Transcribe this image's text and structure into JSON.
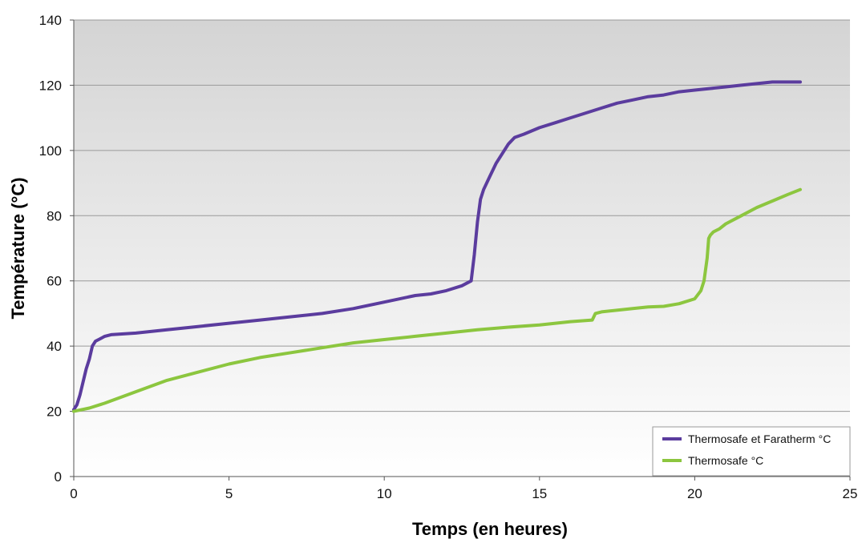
{
  "chart_data": {
    "type": "line",
    "title": "",
    "xlabel": "Temps (en heures)",
    "ylabel": "Température (°C)",
    "xlim": [
      0,
      25
    ],
    "ylim": [
      0,
      140
    ],
    "x_ticks": [
      0,
      5,
      10,
      15,
      20,
      25
    ],
    "y_ticks": [
      0,
      20,
      40,
      60,
      80,
      100,
      120,
      140
    ],
    "grid": "horizontal",
    "legend_position": "bottom-right",
    "background": "vertical gradient, grey at top to white at bottom",
    "series": [
      {
        "name": "Thermosafe et Faratherm °C",
        "color": "#5b3c9e",
        "x": [
          0,
          0.1,
          0.2,
          0.3,
          0.4,
          0.5,
          0.6,
          0.7,
          0.8,
          1.0,
          1.2,
          2,
          3,
          4,
          5,
          6,
          7,
          8,
          9,
          10,
          11,
          11.5,
          12,
          12.5,
          12.8,
          12.9,
          13.0,
          13.1,
          13.2,
          13.4,
          13.6,
          13.8,
          14.0,
          14.1,
          14.2,
          14.5,
          15,
          15.5,
          16,
          16.5,
          17,
          17.5,
          18,
          18.5,
          19,
          19.5,
          20,
          20.5,
          21,
          21.5,
          22,
          22.5,
          23,
          23.4
        ],
        "y": [
          20.5,
          22,
          25,
          29,
          33,
          36,
          40,
          41.5,
          42,
          43,
          43.5,
          44,
          45,
          46,
          47,
          48,
          49,
          50,
          51.5,
          53.5,
          55.5,
          56,
          57,
          58.5,
          60,
          68,
          78,
          85,
          88,
          92,
          96,
          99,
          102,
          103,
          104,
          105,
          107,
          108.5,
          110,
          111.5,
          113,
          114.5,
          115.5,
          116.5,
          117,
          118,
          118.5,
          119,
          119.5,
          120,
          120.5,
          121,
          121,
          121
        ]
      },
      {
        "name": "Thermosafe °C",
        "color": "#8cc63f",
        "x": [
          0,
          0.5,
          1,
          2,
          3,
          4,
          5,
          6,
          7,
          8,
          9,
          10,
          11,
          12,
          13,
          14,
          15,
          16,
          16.7,
          16.8,
          17,
          18,
          18.5,
          19,
          19.5,
          20,
          20.2,
          20.3,
          20.4,
          20.45,
          20.5,
          20.6,
          20.8,
          21,
          21.5,
          22,
          22.5,
          23,
          23.4
        ],
        "y": [
          20,
          21,
          22.5,
          26,
          29.5,
          32,
          34.5,
          36.5,
          38,
          39.5,
          41,
          42,
          43,
          44,
          45,
          45.8,
          46.5,
          47.5,
          48,
          50,
          50.5,
          51.5,
          52,
          52.2,
          53,
          54.5,
          57,
          60,
          67,
          73,
          74,
          75,
          76,
          77.5,
          80,
          82.5,
          84.5,
          86.5,
          88
        ]
      }
    ]
  }
}
